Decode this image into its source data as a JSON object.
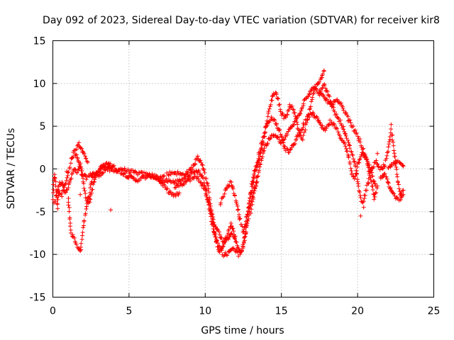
{
  "chart_data": {
    "type": "scatter",
    "title": "Day 092 of 2023, Sidereal Day-to-day VTEC variation (SDTVAR) for receiver kir8",
    "xlabel": "GPS time / hours",
    "ylabel": "SDTVAR / TECUs",
    "xlim": [
      0,
      25
    ],
    "ylim": [
      -15,
      15
    ],
    "xticks": [
      0,
      5,
      10,
      15,
      20,
      25
    ],
    "yticks": [
      -15,
      -10,
      -5,
      0,
      5,
      10,
      15
    ],
    "xtick_labels": [
      "0",
      "5",
      "10",
      "15",
      "20",
      "25"
    ],
    "ytick_labels": [
      "-15",
      "-10",
      "-5",
      "0",
      "5",
      "10",
      "15"
    ],
    "grid": true,
    "marker": "+",
    "series": [
      {
        "name": "SDTVAR",
        "color": "#ff0000",
        "tracks": [
          [
            [
              0.0,
              -3.5
            ],
            [
              0.1,
              -0.5
            ],
            [
              0.2,
              -2.0
            ],
            [
              0.3,
              -4.5
            ],
            [
              0.4,
              -1.8
            ],
            [
              0.6,
              -1.5
            ],
            [
              0.8,
              -2.6
            ],
            [
              1.0,
              -2.2
            ],
            [
              1.2,
              -1.0
            ],
            [
              1.4,
              0.0
            ],
            [
              1.6,
              -0.5
            ],
            [
              1.8,
              0.3
            ],
            [
              2.0,
              -0.8
            ],
            [
              2.2,
              -1.0
            ],
            [
              2.4,
              -0.8
            ],
            [
              2.6,
              -0.5
            ],
            [
              3.0,
              -0.8
            ],
            [
              3.5,
              0.0
            ],
            [
              4.0,
              -0.3
            ],
            [
              4.5,
              0.0
            ],
            [
              5.0,
              -0.3
            ],
            [
              5.5,
              -0.5
            ],
            [
              6.0,
              -0.6
            ],
            [
              6.5,
              -0.8
            ],
            [
              7.0,
              -1.0
            ],
            [
              7.3,
              -0.8
            ]
          ],
          [
            [
              0.1,
              -4.2
            ],
            [
              0.3,
              -2.5
            ],
            [
              0.6,
              -3.0
            ],
            [
              0.8,
              -1.8
            ],
            [
              1.0,
              -0.5
            ],
            [
              1.2,
              1.0
            ],
            [
              1.4,
              2.0
            ],
            [
              1.6,
              1.5
            ],
            [
              1.8,
              0.5
            ],
            [
              2.0,
              -1.5
            ],
            [
              2.2,
              -3.5
            ],
            [
              2.4,
              -4.0
            ],
            [
              2.6,
              -2.2
            ],
            [
              2.8,
              -1.0
            ],
            [
              3.0,
              -0.2
            ],
            [
              3.2,
              0.3
            ],
            [
              3.5,
              0.4
            ],
            [
              4.0,
              0.2
            ],
            [
              4.5,
              -0.4
            ],
            [
              5.0,
              -0.9
            ],
            [
              5.5,
              -1.3
            ],
            [
              6.0,
              -1.0
            ],
            [
              6.5,
              -0.8
            ],
            [
              7.0,
              -1.3
            ],
            [
              7.5,
              -2.5
            ],
            [
              8.0,
              -3.2
            ],
            [
              8.3,
              -2.8
            ]
          ],
          [
            [
              1.0,
              -3.5
            ],
            [
              1.1,
              -5.5
            ],
            [
              1.2,
              -7.5
            ],
            [
              1.4,
              -8.2
            ],
            [
              1.6,
              -9.0
            ],
            [
              1.8,
              -9.8
            ],
            [
              2.0,
              -6.5
            ],
            [
              2.2,
              -4.5
            ],
            [
              2.4,
              -3.0
            ],
            [
              2.6,
              -1.0
            ],
            [
              2.8,
              -0.5
            ],
            [
              3.0,
              -0.3
            ],
            [
              3.3,
              0.2
            ],
            [
              3.6,
              0.7
            ],
            [
              3.9,
              0.3
            ]
          ],
          [
            [
              1.5,
              2.3
            ],
            [
              1.7,
              2.9
            ],
            [
              1.9,
              2.5
            ],
            [
              2.1,
              1.5
            ],
            [
              2.3,
              0.8
            ]
          ],
          [
            [
              7.5,
              -0.6
            ],
            [
              8.0,
              -0.4
            ],
            [
              8.5,
              -0.7
            ],
            [
              9.0,
              -0.2
            ],
            [
              9.3,
              0.6
            ],
            [
              9.5,
              1.3
            ],
            [
              9.7,
              1.0
            ],
            [
              9.9,
              0.0
            ],
            [
              10.1,
              -1.5
            ],
            [
              10.3,
              -3.5
            ],
            [
              10.5,
              -6.5
            ],
            [
              10.7,
              -8.5
            ],
            [
              10.9,
              -9.6
            ],
            [
              11.1,
              -9.4
            ],
            [
              11.3,
              -8.5
            ],
            [
              11.5,
              -7.5
            ],
            [
              11.7,
              -6.5
            ],
            [
              11.9,
              -7.5
            ],
            [
              12.1,
              -9.0
            ],
            [
              12.3,
              -9.9
            ],
            [
              12.5,
              -9.0
            ],
            [
              12.7,
              -7.0
            ],
            [
              12.9,
              -4.0
            ],
            [
              13.1,
              -2.0
            ],
            [
              13.3,
              0.0
            ],
            [
              13.5,
              1.0
            ]
          ],
          [
            [
              7.0,
              -1.5
            ],
            [
              7.5,
              -1.3
            ],
            [
              8.0,
              -1.6
            ],
            [
              8.5,
              -1.2
            ],
            [
              9.0,
              -0.6
            ],
            [
              9.5,
              -0.2
            ],
            [
              9.8,
              -0.8
            ],
            [
              10.0,
              -2.0
            ],
            [
              10.2,
              -4.0
            ],
            [
              10.4,
              -6.0
            ],
            [
              10.6,
              -7.5
            ],
            [
              10.8,
              -8.5
            ],
            [
              11.0,
              -9.3
            ],
            [
              11.2,
              -10.0
            ],
            [
              11.4,
              -10.0
            ],
            [
              11.6,
              -9.6
            ],
            [
              11.8,
              -9.2
            ],
            [
              12.0,
              -9.5
            ],
            [
              12.2,
              -10.0
            ],
            [
              12.4,
              -9.5
            ],
            [
              12.6,
              -8.0
            ],
            [
              12.8,
              -6.0
            ],
            [
              13.0,
              -4.0
            ],
            [
              13.2,
              -2.5
            ],
            [
              13.4,
              -1.5
            ]
          ],
          [
            [
              8.0,
              -2.0
            ],
            [
              8.5,
              -1.7
            ],
            [
              9.0,
              -1.2
            ],
            [
              9.5,
              -1.0
            ],
            [
              10.0,
              -2.5
            ],
            [
              10.3,
              -4.5
            ],
            [
              10.6,
              -6.5
            ],
            [
              10.8,
              -7.2
            ],
            [
              11.0,
              -7.8
            ],
            [
              11.2,
              -8.5
            ],
            [
              11.5,
              -8.0
            ],
            [
              11.7,
              -7.5
            ],
            [
              11.9,
              -8.0
            ],
            [
              12.0,
              -8.5
            ]
          ],
          [
            [
              11.0,
              -4.0
            ],
            [
              11.2,
              -3.0
            ],
            [
              11.5,
              -2.0
            ],
            [
              11.7,
              -1.5
            ],
            [
              12.0,
              -3.5
            ],
            [
              12.3,
              -6.0
            ],
            [
              12.5,
              -7.5
            ],
            [
              12.8,
              -5.0
            ],
            [
              13.0,
              -2.5
            ],
            [
              13.2,
              -0.5
            ],
            [
              13.5,
              1.0
            ],
            [
              13.8,
              3.0
            ],
            [
              14.0,
              5.0
            ],
            [
              14.2,
              7.0
            ],
            [
              14.4,
              8.5
            ],
            [
              14.6,
              9.0
            ],
            [
              14.8,
              8.0
            ],
            [
              15.0,
              6.5
            ],
            [
              15.2,
              6.0
            ],
            [
              15.4,
              6.5
            ],
            [
              15.6,
              7.5
            ],
            [
              15.8,
              7.0
            ],
            [
              16.0,
              5.5
            ],
            [
              16.2,
              4.0
            ],
            [
              16.4,
              3.5
            ],
            [
              16.6,
              5.0
            ],
            [
              16.8,
              6.5
            ],
            [
              17.0,
              8.0
            ],
            [
              17.2,
              9.5
            ],
            [
              17.4,
              10.0
            ],
            [
              17.6,
              10.5
            ],
            [
              17.8,
              11.5
            ]
          ],
          [
            [
              13.0,
              -5.0
            ],
            [
              13.3,
              -2.0
            ],
            [
              13.6,
              0.5
            ],
            [
              13.9,
              2.5
            ],
            [
              14.2,
              3.5
            ],
            [
              14.5,
              4.0
            ],
            [
              14.8,
              3.5
            ],
            [
              15.0,
              3.0
            ],
            [
              15.3,
              3.8
            ],
            [
              15.6,
              4.8
            ],
            [
              15.9,
              5.5
            ],
            [
              16.2,
              6.5
            ],
            [
              16.5,
              8.0
            ],
            [
              16.8,
              8.8
            ],
            [
              17.1,
              9.5
            ],
            [
              17.4,
              9.0
            ],
            [
              17.7,
              8.5
            ],
            [
              18.0,
              8.0
            ],
            [
              18.3,
              7.5
            ],
            [
              18.6,
              8.0
            ],
            [
              18.9,
              7.5
            ],
            [
              19.2,
              6.5
            ],
            [
              19.5,
              5.5
            ],
            [
              19.8,
              4.5
            ],
            [
              20.1,
              3.5
            ],
            [
              20.4,
              2.0
            ],
            [
              20.7,
              0.5
            ],
            [
              21.0,
              -1.0
            ],
            [
              21.2,
              -2.0
            ]
          ],
          [
            [
              13.5,
              1.5
            ],
            [
              13.8,
              3.5
            ],
            [
              14.0,
              5.0
            ],
            [
              14.3,
              6.0
            ],
            [
              14.6,
              5.5
            ],
            [
              14.9,
              4.5
            ],
            [
              15.2,
              2.5
            ],
            [
              15.5,
              2.0
            ],
            [
              15.8,
              2.8
            ],
            [
              16.1,
              4.0
            ],
            [
              16.4,
              5.0
            ],
            [
              16.7,
              6.0
            ],
            [
              17.0,
              6.5
            ],
            [
              17.3,
              6.0
            ],
            [
              17.6,
              5.0
            ],
            [
              17.9,
              4.5
            ],
            [
              18.2,
              5.5
            ],
            [
              18.5,
              5.0
            ],
            [
              18.8,
              4.0
            ],
            [
              19.1,
              3.0
            ],
            [
              19.4,
              1.5
            ],
            [
              19.6,
              -0.5
            ],
            [
              19.8,
              -1.0
            ],
            [
              20.0,
              0.5
            ],
            [
              20.3,
              2.0
            ],
            [
              20.6,
              1.0
            ],
            [
              20.9,
              -1.5
            ],
            [
              21.1,
              -3.5
            ],
            [
              21.3,
              -2.0
            ]
          ],
          [
            [
              17.5,
              9.0
            ],
            [
              17.8,
              9.8
            ],
            [
              18.1,
              8.5
            ],
            [
              18.4,
              7.0
            ],
            [
              18.7,
              6.0
            ],
            [
              19.0,
              5.0
            ],
            [
              19.3,
              3.5
            ],
            [
              19.6,
              2.0
            ],
            [
              19.9,
              0.0
            ],
            [
              20.1,
              -2.5
            ],
            [
              20.3,
              -4.0
            ],
            [
              20.5,
              -3.0
            ],
            [
              20.7,
              -1.5
            ],
            [
              20.9,
              0.0
            ],
            [
              21.2,
              0.8
            ],
            [
              21.5,
              0.0
            ],
            [
              21.8,
              0.5
            ],
            [
              22.0,
              2.0
            ],
            [
              22.2,
              4.5
            ],
            [
              22.4,
              2.0
            ],
            [
              22.6,
              -1.0
            ],
            [
              22.8,
              -3.0
            ],
            [
              23.0,
              -2.5
            ]
          ],
          [
            [
              21.5,
              -1.0
            ],
            [
              21.8,
              -0.5
            ],
            [
              22.0,
              -1.5
            ],
            [
              22.2,
              -2.5
            ],
            [
              22.4,
              -3.0
            ],
            [
              22.6,
              -3.5
            ],
            [
              22.8,
              -3.5
            ],
            [
              23.0,
              -3.0
            ]
          ],
          [
            [
              22.0,
              0.0
            ],
            [
              22.3,
              0.5
            ],
            [
              22.6,
              0.8
            ],
            [
              22.9,
              0.5
            ],
            [
              23.0,
              0.3
            ]
          ]
        ],
        "isolated_points": [
          [
            3.8,
            -4.8
          ],
          [
            0.9,
            -0.3
          ],
          [
            1.8,
            -3.0
          ],
          [
            20.2,
            -5.5
          ],
          [
            20.4,
            -4.5
          ],
          [
            21.3,
            1.8
          ],
          [
            22.2,
            5.2
          ]
        ]
      }
    ]
  }
}
